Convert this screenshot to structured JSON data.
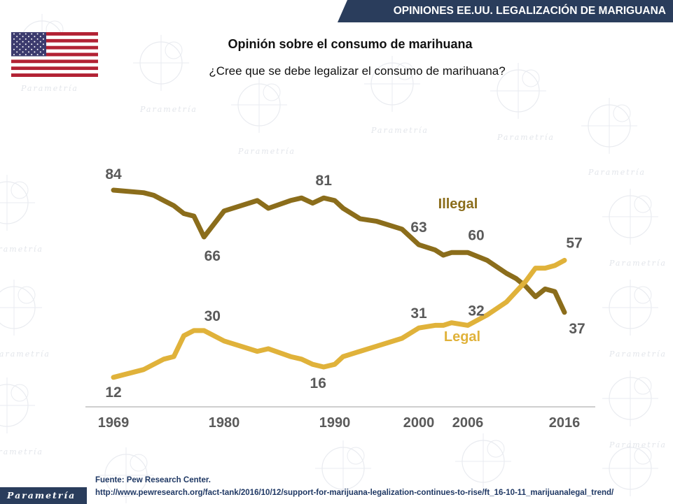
{
  "header": {
    "banner": "OPINIONES EE.UU. LEGALIZACIÓN DE MARIGUANA"
  },
  "flag": {
    "icon": "us-flag-icon"
  },
  "title": "Opinión sobre el consumo de marihuana",
  "subtitle": "¿Cree que se debe legalizar el consumo de marihuana?",
  "footer": {
    "source": "Fuente: Pew Research Center.",
    "url": "http://www.pewresearch.org/fact-tank/2016/10/12/support-for-marijuana-legalization-continues-to-rise/ft_16-10-11_marijuanalegal_trend/",
    "brand": "Parametría"
  },
  "watermark": {
    "text": "Parametría"
  },
  "colors": {
    "illegal": "#8b6d1b",
    "legal": "#e0b23a",
    "brand": "#2a3d5c"
  },
  "chart_data": {
    "type": "line",
    "title": "Opinión sobre el consumo de marihuana",
    "xlabel": "",
    "ylabel": "",
    "x_ticks": [
      {
        "year": 1969,
        "label": "1969"
      },
      {
        "year": 1980,
        "label": "1980"
      },
      {
        "year": 1990,
        "label": "1990"
      },
      {
        "year": 2000,
        "label": "2000"
      },
      {
        "year": 2006,
        "label": "2006"
      },
      {
        "year": 2016,
        "label": "2016"
      }
    ],
    "grid": false,
    "series": [
      {
        "name": "Illegal",
        "color": "#8b6d1b",
        "points": [
          [
            1969,
            84
          ],
          [
            1972,
            83
          ],
          [
            1973,
            82
          ],
          [
            1974,
            80
          ],
          [
            1975,
            78
          ],
          [
            1976,
            75
          ],
          [
            1977,
            74
          ],
          [
            1978,
            66
          ],
          [
            1980,
            76
          ],
          [
            1983,
            80
          ],
          [
            1984,
            77
          ],
          [
            1986,
            80
          ],
          [
            1987,
            81
          ],
          [
            1988,
            79
          ],
          [
            1989,
            81
          ],
          [
            1990,
            80
          ],
          [
            1991,
            77
          ],
          [
            1993,
            73
          ],
          [
            1995,
            72
          ],
          [
            1998,
            69
          ],
          [
            2000,
            63
          ],
          [
            2002,
            61
          ],
          [
            2003,
            59
          ],
          [
            2004,
            60
          ],
          [
            2006,
            60
          ],
          [
            2008,
            57
          ],
          [
            2010,
            52
          ],
          [
            2011,
            50
          ],
          [
            2012,
            47
          ],
          [
            2013,
            43
          ],
          [
            2014,
            46
          ],
          [
            2015,
            45
          ],
          [
            2016,
            37
          ]
        ]
      },
      {
        "name": "Legal",
        "color": "#e0b23a",
        "points": [
          [
            1969,
            12
          ],
          [
            1972,
            15
          ],
          [
            1973,
            17
          ],
          [
            1974,
            19
          ],
          [
            1975,
            20
          ],
          [
            1976,
            28
          ],
          [
            1977,
            30
          ],
          [
            1978,
            30
          ],
          [
            1980,
            26
          ],
          [
            1983,
            22
          ],
          [
            1984,
            23
          ],
          [
            1986,
            20
          ],
          [
            1987,
            19
          ],
          [
            1988,
            17
          ],
          [
            1989,
            16
          ],
          [
            1990,
            17
          ],
          [
            1991,
            20
          ],
          [
            1993,
            22
          ],
          [
            1995,
            24
          ],
          [
            1998,
            27
          ],
          [
            2000,
            31
          ],
          [
            2002,
            32
          ],
          [
            2003,
            32
          ],
          [
            2004,
            33
          ],
          [
            2006,
            32
          ],
          [
            2008,
            36
          ],
          [
            2010,
            41
          ],
          [
            2011,
            45
          ],
          [
            2012,
            49
          ],
          [
            2013,
            54
          ],
          [
            2014,
            54
          ],
          [
            2015,
            55
          ],
          [
            2016,
            57
          ]
        ]
      }
    ],
    "data_labels": [
      {
        "series": "Illegal",
        "year": 1969,
        "value": 84,
        "text": "84"
      },
      {
        "series": "Illegal",
        "year": 1978,
        "value": 66,
        "text": "66"
      },
      {
        "series": "Illegal",
        "year": 1989,
        "value": 81,
        "text": "81"
      },
      {
        "series": "Illegal",
        "year": 2000,
        "value": 63,
        "text": "63"
      },
      {
        "series": "Illegal",
        "year": 2006,
        "value": 60,
        "text": "60"
      },
      {
        "series": "Illegal",
        "year": 2016,
        "value": 37,
        "text": "37"
      },
      {
        "series": "Legal",
        "year": 1969,
        "value": 12,
        "text": "12"
      },
      {
        "series": "Legal",
        "year": 1978,
        "value": 30,
        "text": "30"
      },
      {
        "series": "Legal",
        "year": 1989,
        "value": 16,
        "text": "16"
      },
      {
        "series": "Legal",
        "year": 2000,
        "value": 31,
        "text": "31"
      },
      {
        "series": "Legal",
        "year": 2006,
        "value": 32,
        "text": "32"
      },
      {
        "series": "Legal",
        "year": 2016,
        "value": 57,
        "text": "57"
      }
    ],
    "series_labels": [
      {
        "series": "Illegal",
        "text": "Illegal"
      },
      {
        "series": "Legal",
        "text": "Legal"
      }
    ]
  }
}
